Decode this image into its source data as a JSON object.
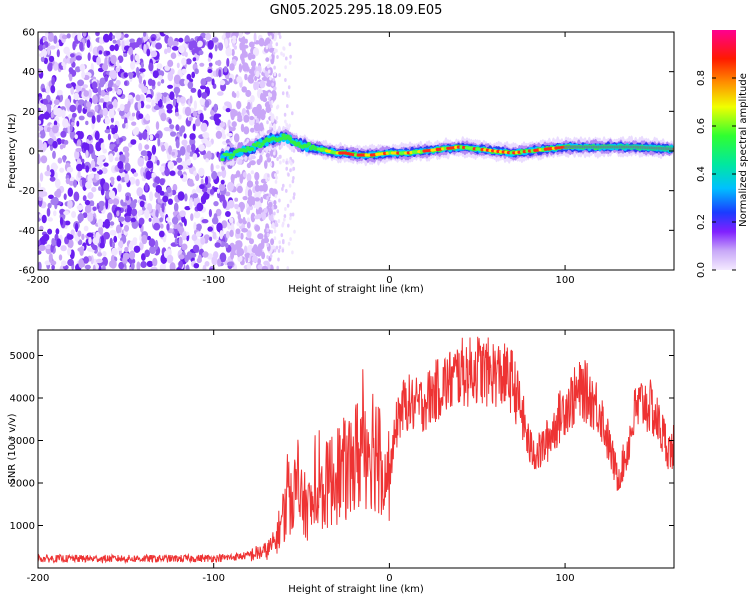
{
  "title": "GN05.2025.295.18.09.E05",
  "colors": {
    "snr_line": "#ee3333",
    "frame": "#000000"
  },
  "chart_data": [
    {
      "type": "heatmap",
      "title": "GN05.2025.295.18.09.E05",
      "xlabel": "Height of straight line (km)",
      "ylabel": "Frequency (Hz)",
      "xlim": [
        -200,
        162
      ],
      "ylim": [
        -60,
        60
      ],
      "xticks": [
        -200,
        -100,
        0,
        100
      ],
      "yticks": [
        -60,
        -40,
        -20,
        0,
        20,
        40,
        60
      ],
      "colorbar": {
        "label": "Normalized spectral amplitude",
        "range": [
          0,
          1
        ],
        "ticks": [
          0.0,
          0.2,
          0.4,
          0.6,
          0.8
        ]
      },
      "ridge": {
        "x": [
          -95,
          -90,
          -85,
          -80,
          -75,
          -70,
          -65,
          -60,
          -55,
          -50,
          -45,
          -40,
          -35,
          -30,
          -25,
          -20,
          -10,
          0,
          10,
          20,
          30,
          40,
          50,
          60,
          70,
          80,
          90,
          100,
          120,
          140,
          162
        ],
        "freq": [
          -3,
          -2,
          0,
          1,
          3,
          5,
          6,
          7,
          5,
          3,
          2,
          1,
          0,
          -1,
          -1,
          -2,
          -2,
          -1,
          -1,
          0,
          1,
          2,
          1,
          0,
          -1,
          0,
          1,
          2,
          2,
          2,
          1
        ]
      }
    },
    {
      "type": "line",
      "xlabel": "Height of straight line (km)",
      "ylabel": "SNR (10 * v/v)",
      "xlim": [
        -200,
        162
      ],
      "ylim": [
        0,
        5600
      ],
      "xticks": [
        -200,
        -100,
        0,
        100
      ],
      "yticks": [
        1000,
        2000,
        3000,
        4000,
        5000
      ],
      "series": [
        {
          "name": "SNR",
          "x": [
            -200,
            -180,
            -160,
            -140,
            -120,
            -100,
            -90,
            -80,
            -70,
            -65,
            -60,
            -55,
            -50,
            -45,
            -40,
            -35,
            -30,
            -25,
            -20,
            -15,
            -10,
            -5,
            0,
            5,
            10,
            15,
            20,
            25,
            30,
            35,
            40,
            45,
            50,
            55,
            60,
            65,
            70,
            75,
            80,
            85,
            90,
            95,
            100,
            105,
            110,
            115,
            120,
            125,
            130,
            135,
            140,
            145,
            150,
            155,
            160,
            162
          ],
          "y": [
            220,
            220,
            220,
            220,
            220,
            230,
            250,
            300,
            400,
            600,
            1300,
            1900,
            1500,
            1400,
            1600,
            2000,
            2200,
            2300,
            2500,
            2900,
            3000,
            2600,
            2200,
            3600,
            3900,
            3800,
            3900,
            4100,
            4300,
            4400,
            4600,
            4600,
            4700,
            4600,
            4600,
            4500,
            4400,
            3700,
            2800,
            2700,
            3000,
            3400,
            3800,
            4000,
            4200,
            4000,
            3700,
            2900,
            2100,
            2700,
            3700,
            3900,
            3700,
            3200,
            2700,
            2900
          ]
        }
      ]
    }
  ]
}
